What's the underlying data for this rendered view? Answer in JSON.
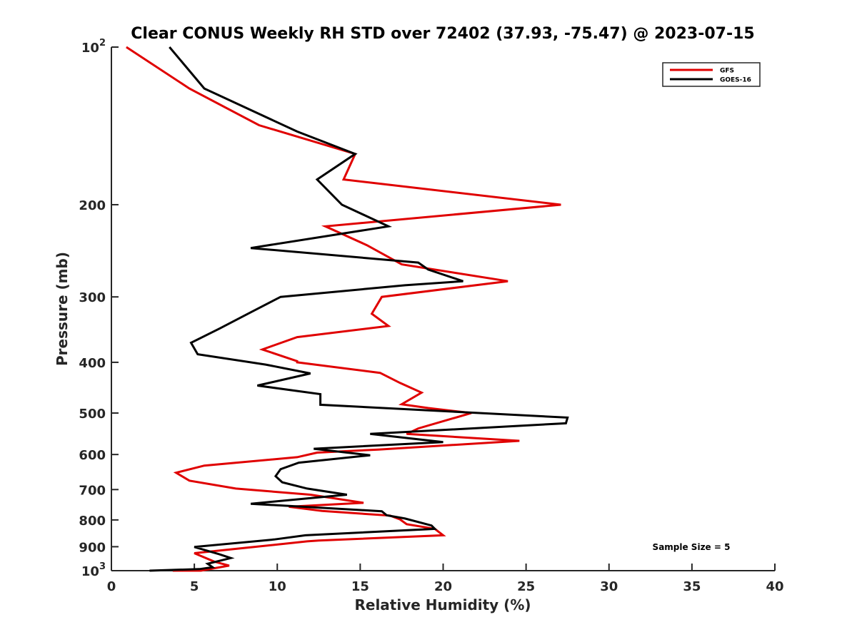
{
  "chart_data": {
    "type": "line",
    "title": "Clear CONUS Weekly RH STD over 72402 (37.93, -75.47) @ 2023-07-15",
    "xlabel": "Relative Humidity (%)",
    "ylabel": "Pressure (mb)",
    "xlim": [
      0,
      40
    ],
    "ylim": [
      100,
      1000
    ],
    "yscale": "log",
    "yreversed": true,
    "grid": false,
    "xticks": [
      0,
      5,
      10,
      15,
      20,
      25,
      30,
      35,
      40
    ],
    "xtick_labels": [
      "0",
      "5",
      "10",
      "15",
      "20",
      "25",
      "30",
      "35",
      "40"
    ],
    "yticks": [
      100,
      200,
      300,
      400,
      500,
      600,
      700,
      800,
      900,
      1000
    ],
    "ytick_labels": [
      {
        "base": "10",
        "exp": "2"
      },
      {
        "base": "200",
        "exp": ""
      },
      {
        "base": "300",
        "exp": ""
      },
      {
        "base": "400",
        "exp": ""
      },
      {
        "base": "500",
        "exp": ""
      },
      {
        "base": "600",
        "exp": ""
      },
      {
        "base": "700",
        "exp": ""
      },
      {
        "base": "800",
        "exp": ""
      },
      {
        "base": "900",
        "exp": ""
      },
      {
        "base": "10",
        "exp": "3"
      }
    ],
    "legend_position": "top-right",
    "annotation": "Sample Size = 5",
    "series": [
      {
        "name": "GFS",
        "color": "#e00000",
        "points": [
          [
            0.9,
            100
          ],
          [
            4.7,
            120
          ],
          [
            8.9,
            141
          ],
          [
            14.7,
            160
          ],
          [
            14.0,
            179
          ],
          [
            27.1,
            200
          ],
          [
            12.9,
            220
          ],
          [
            15.4,
            239
          ],
          [
            17.5,
            260
          ],
          [
            23.9,
            280
          ],
          [
            16.3,
            300
          ],
          [
            15.7,
            323
          ],
          [
            16.7,
            341
          ],
          [
            11.2,
            358
          ],
          [
            9.1,
            378
          ],
          [
            11.2,
            398
          ],
          [
            11.2,
            400
          ],
          [
            16.2,
            419
          ],
          [
            17.4,
            438
          ],
          [
            18.7,
            457
          ],
          [
            17.5,
            481
          ],
          [
            19.1,
            489
          ],
          [
            21.7,
            500
          ],
          [
            18.5,
            535
          ],
          [
            17.8,
            548
          ],
          [
            24.6,
            565
          ],
          [
            16.1,
            587
          ],
          [
            12.4,
            595
          ],
          [
            11.2,
            607
          ],
          [
            5.6,
            630
          ],
          [
            3.9,
            650
          ],
          [
            4.7,
            673
          ],
          [
            7.5,
            697
          ],
          [
            12.0,
            716
          ],
          [
            15.2,
            742
          ],
          [
            10.7,
            755
          ],
          [
            12.7,
            769
          ],
          [
            16.8,
            785
          ],
          [
            17.4,
            798
          ],
          [
            17.8,
            815
          ],
          [
            19.5,
            832
          ],
          [
            20.0,
            856
          ],
          [
            12.5,
            876
          ],
          [
            11.8,
            879
          ],
          [
            8.6,
            901
          ],
          [
            5.0,
            926
          ],
          [
            6.2,
            961
          ],
          [
            7.1,
            978
          ],
          [
            5.4,
            1000
          ],
          [
            5.1,
            1000
          ],
          [
            3.7,
            1000
          ]
        ]
      },
      {
        "name": "GOES-16",
        "color": "#000000",
        "points": [
          [
            3.5,
            100
          ],
          [
            5.6,
            120
          ],
          [
            11.2,
            145
          ],
          [
            14.7,
            160
          ],
          [
            12.4,
            179
          ],
          [
            13.9,
            200
          ],
          [
            16.7,
            220
          ],
          [
            8.4,
            242
          ],
          [
            18.5,
            258
          ],
          [
            19.1,
            266
          ],
          [
            21.2,
            280
          ],
          [
            17.7,
            285
          ],
          [
            10.2,
            300
          ],
          [
            8.4,
            321
          ],
          [
            6.5,
            345
          ],
          [
            4.8,
            367
          ],
          [
            5.2,
            386
          ],
          [
            9.3,
            404
          ],
          [
            12.0,
            420
          ],
          [
            8.8,
            443
          ],
          [
            12.6,
            460
          ],
          [
            12.6,
            482
          ],
          [
            27.5,
            510
          ],
          [
            27.4,
            523
          ],
          [
            15.6,
            548
          ],
          [
            20.0,
            568
          ],
          [
            12.2,
            585
          ],
          [
            15.6,
            602
          ],
          [
            11.3,
            622
          ],
          [
            10.2,
            640
          ],
          [
            9.9,
            660
          ],
          [
            10.3,
            678
          ],
          [
            11.8,
            697
          ],
          [
            14.2,
            716
          ],
          [
            8.4,
            745
          ],
          [
            16.3,
            770
          ],
          [
            16.6,
            784
          ],
          [
            17.7,
            795
          ],
          [
            19.3,
            820
          ],
          [
            19.5,
            832
          ],
          [
            11.7,
            856
          ],
          [
            9.8,
            872
          ],
          [
            5.0,
            901
          ],
          [
            6.5,
            930
          ],
          [
            7.2,
            946
          ],
          [
            5.8,
            970
          ],
          [
            6.1,
            985
          ],
          [
            5.3,
            993
          ],
          [
            2.3,
            1000
          ]
        ]
      }
    ]
  }
}
